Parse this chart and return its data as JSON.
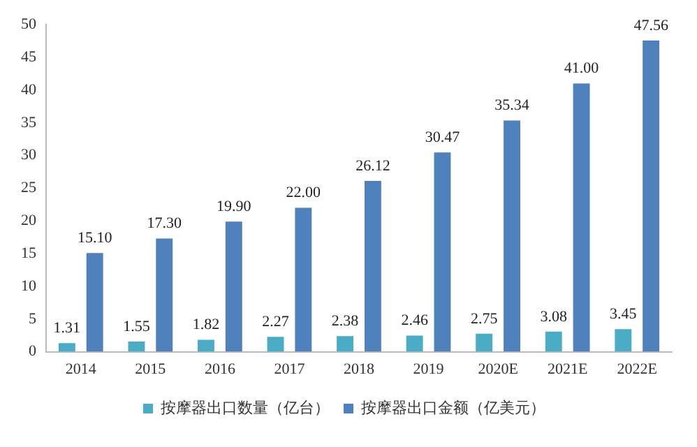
{
  "chart_data": {
    "type": "bar",
    "categories": [
      "2014",
      "2015",
      "2016",
      "2017",
      "2018",
      "2019",
      "2020E",
      "2021E",
      "2022E"
    ],
    "series": [
      {
        "name": "按摩器出口数量（亿台）",
        "color": "#4bacc6",
        "values": [
          1.31,
          1.55,
          1.82,
          2.27,
          2.38,
          2.46,
          2.75,
          3.08,
          3.45
        ]
      },
      {
        "name": "按摩器出口金额（亿美元）",
        "color": "#4f81bd",
        "values": [
          15.1,
          17.3,
          19.9,
          22.0,
          26.12,
          30.47,
          35.34,
          41.0,
          47.56
        ]
      }
    ],
    "value_labels": [
      [
        "1.31",
        "1.55",
        "1.82",
        "2.27",
        "2.38",
        "2.46",
        "2.75",
        "3.08",
        "3.45"
      ],
      [
        "15.10",
        "17.30",
        "19.90",
        "22.00",
        "26.12",
        "30.47",
        "35.34",
        "41.00",
        "47.56"
      ]
    ],
    "ylim": [
      0,
      50
    ],
    "yticks": [
      0,
      5,
      10,
      15,
      20,
      25,
      30,
      35,
      40,
      45,
      50
    ],
    "grid": false,
    "legend": "bottom"
  }
}
